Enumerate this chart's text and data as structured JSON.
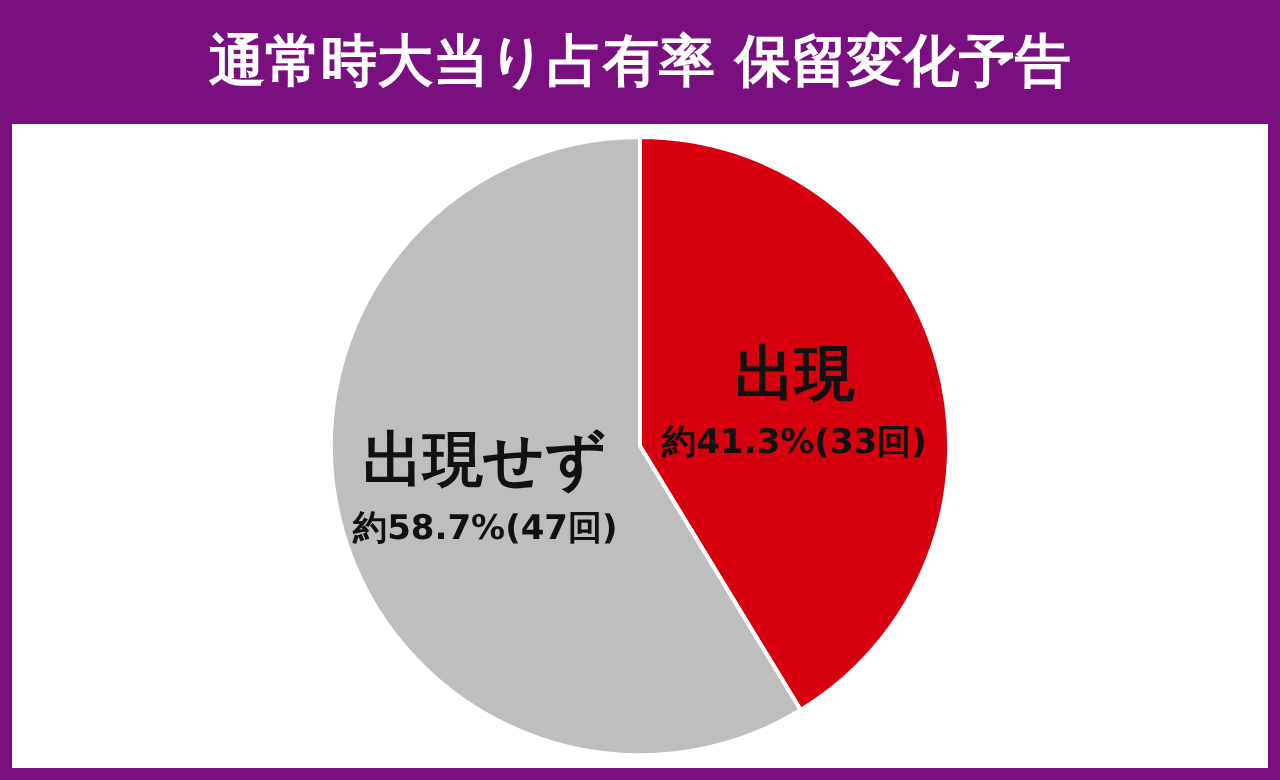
{
  "chart_data": {
    "type": "pie",
    "title": "通常時大当り占有率 保留変化予告",
    "categories": [
      "出現",
      "出現せず"
    ],
    "values": [
      41.3,
      58.7
    ],
    "colors": [
      "#d7000f",
      "#bebebe"
    ],
    "value_labels": [
      "約41.3%(33回)",
      "約58.7%(47回)"
    ],
    "legend": false
  }
}
